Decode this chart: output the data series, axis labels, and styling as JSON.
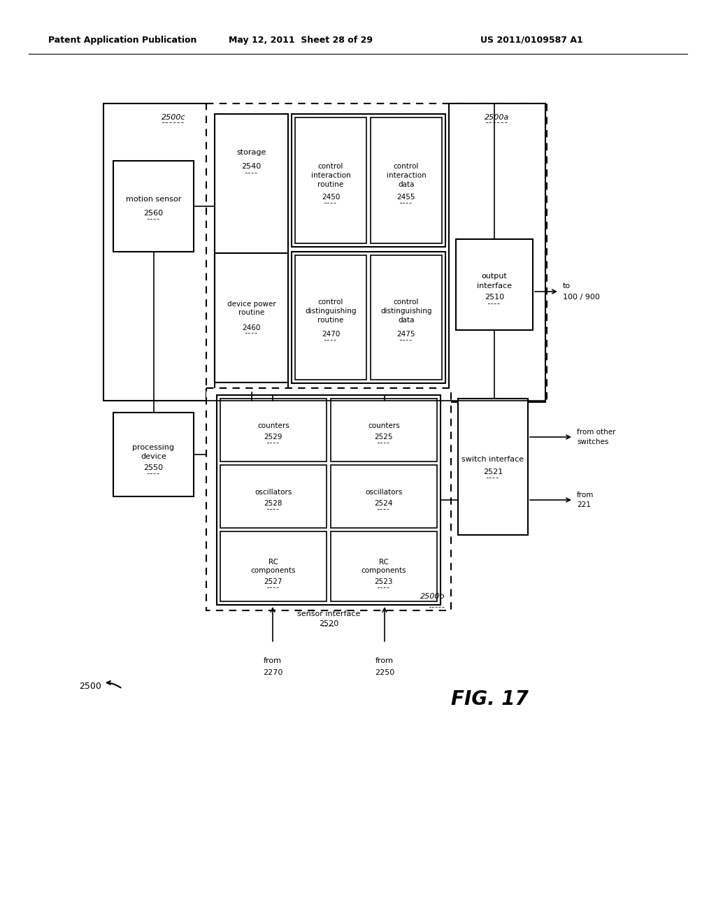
{
  "title_left": "Patent Application Publication",
  "title_mid": "May 12, 2011  Sheet 28 of 29",
  "title_right": "US 2011/0109587 A1",
  "fig_label": "FIG. 17",
  "background": "#ffffff"
}
